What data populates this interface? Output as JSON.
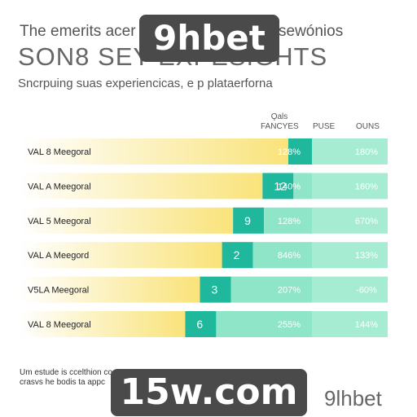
{
  "header": {
    "line1_a": "The emerits acer",
    "line1_b": "sewónios",
    "line2": "SON8 SEY EXPESIGHTS",
    "line3": "Sncrpuing suas experiencicas, e p plataerforna"
  },
  "watermark_top": "9hbet",
  "watermark_bottom": "15w.com",
  "columns": {
    "col1": "Ǫals FANCYES",
    "col2": "PUSE",
    "col3": "OUNS"
  },
  "chart_data": {
    "type": "bar",
    "rows": [
      {
        "label": "VAL 8 Meegoral",
        "bar_label": "",
        "value": 0.73,
        "col2": "128%",
        "col3": "180%"
      },
      {
        "label": "VAL A Meegoral",
        "bar_label": "12",
        "value": 0.66,
        "col2": "140%",
        "col3": "160%"
      },
      {
        "label": "VAL 5 Meegoral",
        "bar_label": "9",
        "value": 0.58,
        "col2": "128%",
        "col3": "670%"
      },
      {
        "label": "VAL A Meegord",
        "bar_label": "2",
        "value": 0.55,
        "col2": "846%",
        "col3": "133%"
      },
      {
        "label": "V5LA Meegoral",
        "bar_label": "3",
        "value": 0.49,
        "col2": "207%",
        "col3": "-60%"
      },
      {
        "label": "VAL 8 Meegoral",
        "bar_label": "6",
        "value": 0.45,
        "col2": "255%",
        "col3": "144%"
      }
    ]
  },
  "footer": {
    "line1": "Um estude is ccelthion co",
    "line2": "crasvs he bodis ta appc",
    "brand": "9lhbet"
  },
  "colors": {
    "yellow": "#f9e37a",
    "teal": "#1fb89c",
    "mint": "#8fe5c8",
    "mint_light": "#a6ecd3"
  }
}
